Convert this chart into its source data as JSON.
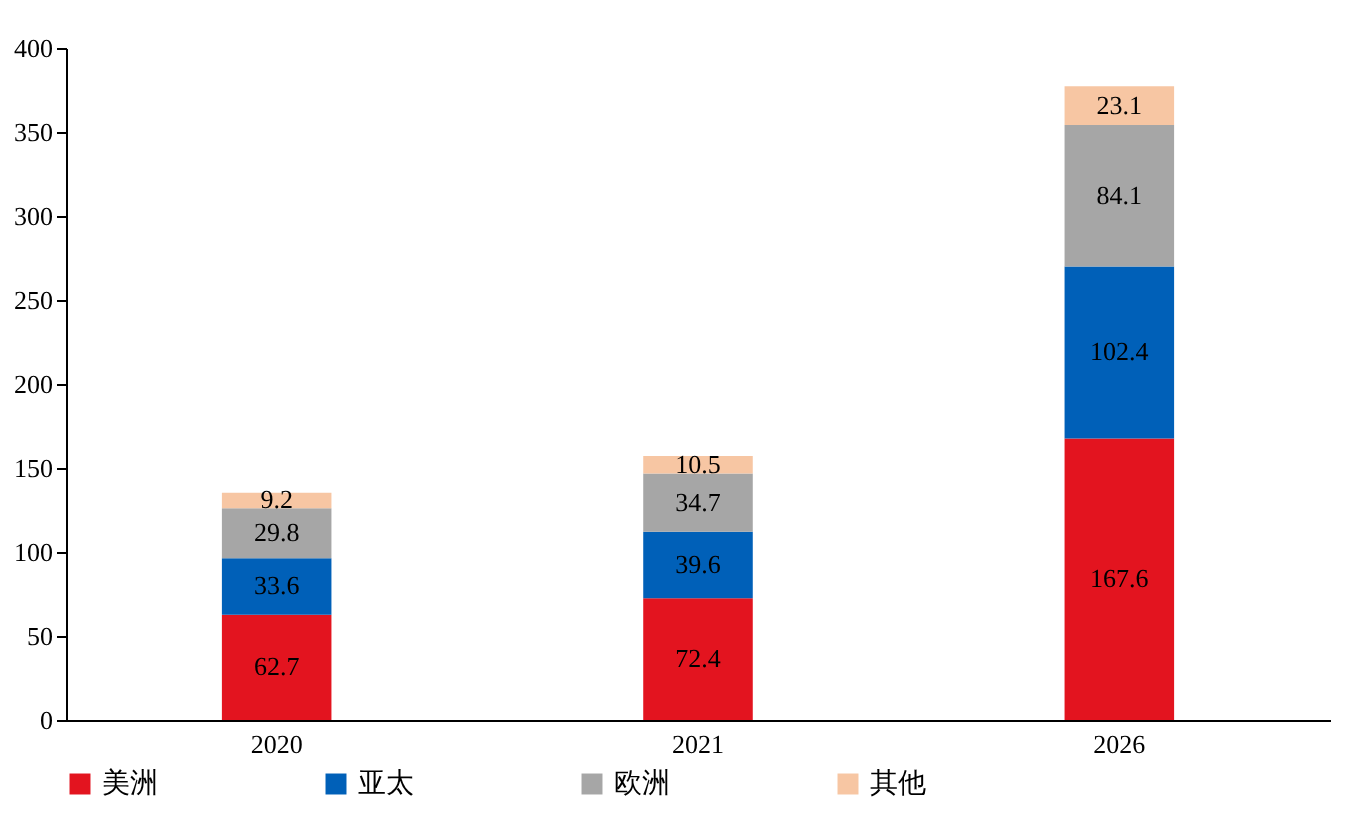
{
  "chart_data": {
    "type": "bar",
    "stacked": true,
    "categories": [
      "2020",
      "2021",
      "2026"
    ],
    "series": [
      {
        "name": "美洲",
        "color": "#e3141f",
        "values": [
          62.7,
          72.4,
          167.6
        ]
      },
      {
        "name": "亚太",
        "color": "#0060b8",
        "values": [
          33.6,
          39.6,
          102.4
        ]
      },
      {
        "name": "欧洲",
        "color": "#a6a6a6",
        "values": [
          29.8,
          34.7,
          84.1
        ]
      },
      {
        "name": "其他",
        "color": "#f7c6a3",
        "values": [
          9.2,
          10.5,
          23.1
        ]
      }
    ],
    "ylim": [
      0,
      400
    ],
    "yticks": [
      0,
      50,
      100,
      150,
      200,
      250,
      300,
      350,
      400
    ],
    "grid": false,
    "legend": "bottom",
    "data_labels": true
  }
}
